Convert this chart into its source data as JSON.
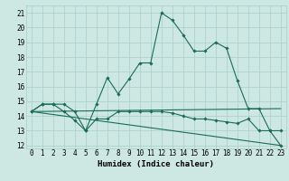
{
  "xlabel": "Humidex (Indice chaleur)",
  "xlim": [
    -0.5,
    23.5
  ],
  "ylim": [
    11.8,
    21.5
  ],
  "yticks": [
    12,
    13,
    14,
    15,
    16,
    17,
    18,
    19,
    20,
    21
  ],
  "xticks": [
    0,
    1,
    2,
    3,
    4,
    5,
    6,
    7,
    8,
    9,
    10,
    11,
    12,
    13,
    14,
    15,
    16,
    17,
    18,
    19,
    20,
    21,
    22,
    23
  ],
  "background_color": "#cde8e2",
  "grid_color": "#a8cec8",
  "line_color": "#1a6b5a",
  "line1": {
    "x": [
      0,
      1,
      2,
      3,
      4,
      5,
      6,
      7,
      8,
      9,
      10,
      11,
      12,
      13,
      14,
      15,
      16,
      17,
      18,
      19,
      20,
      21,
      22,
      23
    ],
    "y": [
      14.3,
      14.8,
      14.8,
      14.8,
      14.3,
      13.0,
      14.8,
      16.6,
      15.5,
      16.5,
      17.6,
      17.6,
      21.0,
      20.5,
      19.5,
      18.4,
      18.4,
      19.0,
      18.6,
      16.4,
      14.5,
      14.5,
      13.0,
      13.0
    ]
  },
  "line2": {
    "x": [
      0,
      1,
      2,
      3,
      4,
      5,
      6,
      7,
      8,
      9,
      10,
      11,
      12,
      13,
      14,
      15,
      16,
      17,
      18,
      19,
      20,
      21,
      22,
      23
    ],
    "y": [
      14.3,
      14.8,
      14.8,
      14.3,
      13.7,
      13.0,
      13.8,
      13.8,
      14.3,
      14.3,
      14.3,
      14.3,
      14.3,
      14.2,
      14.0,
      13.8,
      13.8,
      13.7,
      13.6,
      13.5,
      13.8,
      13.0,
      13.0,
      12.0
    ]
  },
  "line3": {
    "x": [
      0,
      23
    ],
    "y": [
      14.3,
      14.5
    ]
  },
  "line4": {
    "x": [
      0,
      23
    ],
    "y": [
      14.3,
      12.0
    ]
  },
  "tick_fontsize": 5.5,
  "label_fontsize": 6.5
}
